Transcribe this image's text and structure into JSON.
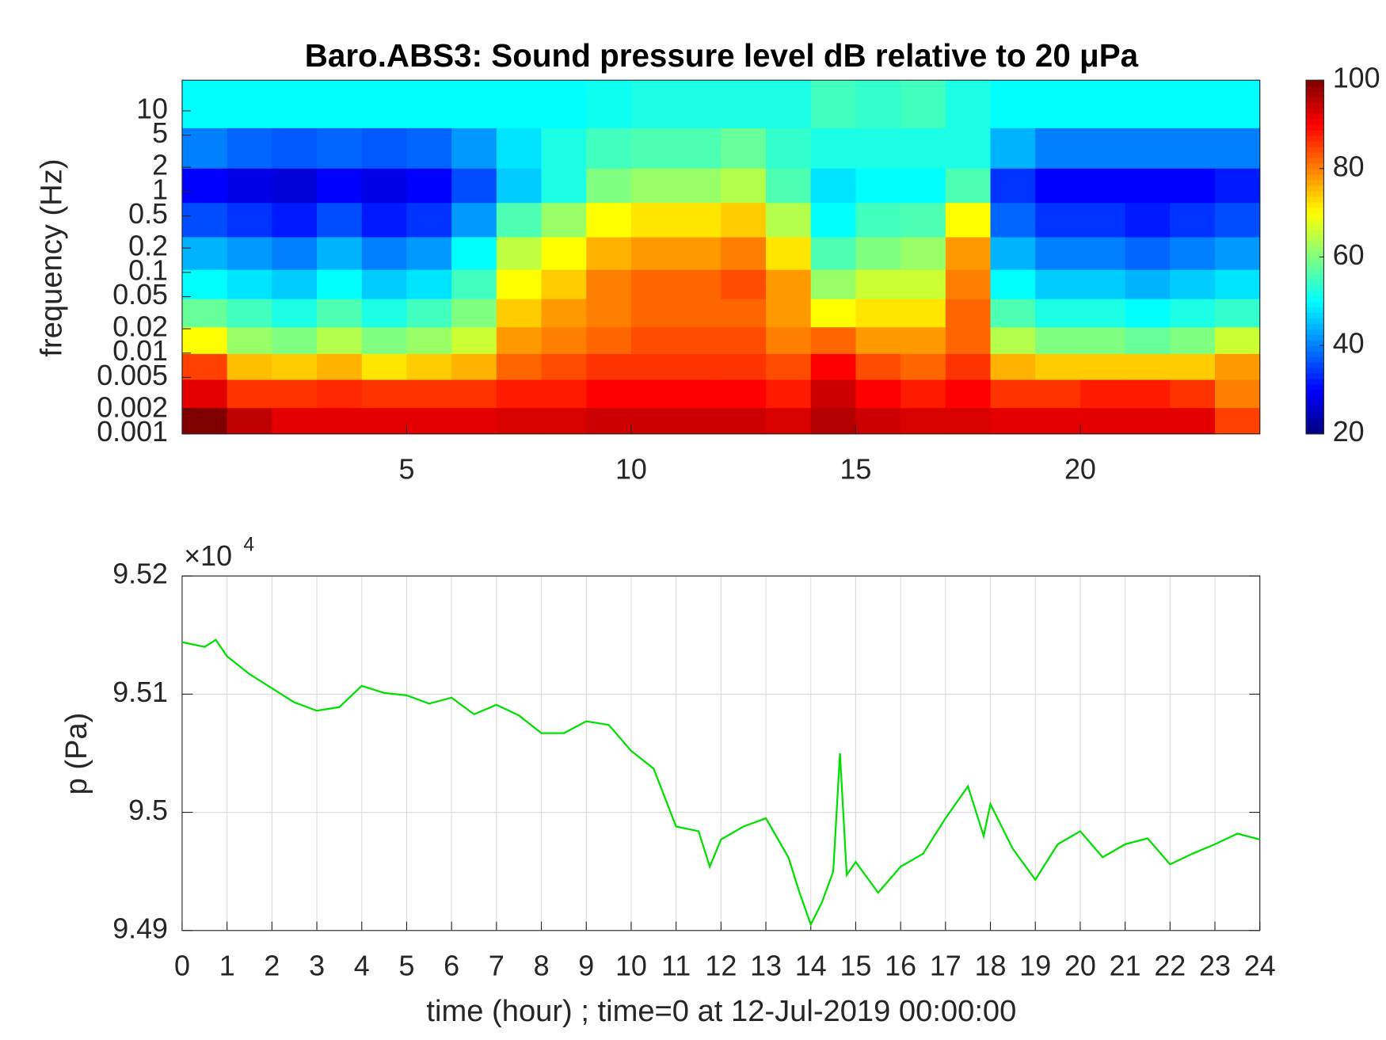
{
  "chart_data": [
    {
      "type": "heatmap",
      "title": "Baro.ABS3: Sound pressure level dB relative to 20 μPa",
      "ylabel": "frequency (Hz)",
      "x": [
        0.5,
        1.5,
        2.5,
        3.5,
        4.5,
        5.5,
        6.5,
        7.5,
        8.5,
        9.5,
        10.5,
        11.5,
        12.5,
        13.5,
        14.5,
        15.5,
        16.5,
        17.5,
        18.5,
        19.5,
        20.5,
        21.5,
        22.5,
        23.5
      ],
      "y": [
        0.0014,
        0.0032,
        0.007,
        0.014,
        0.032,
        0.07,
        0.17,
        0.45,
        1.2,
        3.2,
        12
      ],
      "z": [
        [
          100,
          95,
          92,
          92,
          92,
          92,
          92,
          93,
          93,
          94,
          94,
          94,
          94,
          93,
          96,
          94,
          93,
          93,
          92,
          92,
          92,
          92,
          92,
          85
        ],
        [
          92,
          86,
          86,
          87,
          86,
          86,
          86,
          88,
          88,
          90,
          90,
          90,
          90,
          88,
          94,
          90,
          88,
          90,
          86,
          86,
          88,
          88,
          86,
          80
        ],
        [
          85,
          75,
          74,
          76,
          72,
          74,
          76,
          82,
          84,
          86,
          86,
          86,
          86,
          84,
          90,
          84,
          82,
          86,
          76,
          74,
          74,
          74,
          74,
          78
        ],
        [
          70,
          62,
          60,
          64,
          60,
          62,
          66,
          78,
          80,
          82,
          84,
          84,
          84,
          80,
          82,
          78,
          78,
          82,
          64,
          60,
          60,
          58,
          60,
          66
        ],
        [
          58,
          55,
          52,
          56,
          52,
          55,
          60,
          74,
          78,
          80,
          82,
          82,
          82,
          78,
          70,
          72,
          72,
          82,
          56,
          52,
          52,
          50,
          52,
          54
        ],
        [
          50,
          48,
          46,
          50,
          46,
          48,
          55,
          70,
          74,
          80,
          82,
          82,
          84,
          78,
          62,
          66,
          66,
          80,
          50,
          46,
          46,
          44,
          46,
          48
        ],
        [
          44,
          42,
          40,
          44,
          40,
          42,
          50,
          65,
          70,
          76,
          78,
          78,
          80,
          72,
          56,
          60,
          62,
          78,
          44,
          40,
          40,
          38,
          40,
          42
        ],
        [
          36,
          34,
          32,
          36,
          32,
          34,
          42,
          56,
          62,
          70,
          72,
          72,
          74,
          64,
          50,
          55,
          56,
          70,
          38,
          34,
          34,
          32,
          34,
          36
        ],
        [
          30,
          28,
          27,
          30,
          28,
          30,
          36,
          46,
          52,
          60,
          62,
          62,
          64,
          56,
          48,
          50,
          50,
          56,
          34,
          30,
          30,
          30,
          30,
          32
        ],
        [
          40,
          38,
          37,
          38,
          37,
          38,
          42,
          48,
          52,
          55,
          56,
          56,
          58,
          54,
          52,
          52,
          52,
          52,
          44,
          40,
          40,
          40,
          40,
          40
        ],
        [
          50,
          50,
          50,
          50,
          50,
          50,
          50,
          50,
          50,
          51,
          52,
          52,
          52,
          52,
          55,
          54,
          55,
          52,
          50,
          50,
          50,
          50,
          50,
          50
        ]
      ],
      "xlim": [
        0,
        24
      ],
      "xticks": [
        5,
        10,
        15,
        20
      ],
      "ylim": [
        0.001,
        24
      ],
      "ylog": true,
      "yticks": [
        0.001,
        0.002,
        0.005,
        0.01,
        0.02,
        0.05,
        0.1,
        0.2,
        0.5,
        1,
        2,
        5,
        10
      ],
      "colormap": "jet",
      "clim": [
        20,
        100
      ],
      "cticks": [
        20,
        40,
        60,
        80,
        100
      ]
    },
    {
      "type": "line",
      "xlabel": "time (hour) ; time=0 at 12-Jul-2019 00:00:00",
      "ylabel": "p (Pa)",
      "y_multiplier": {
        "base": "×10",
        "exponent": "4"
      },
      "x": [
        0,
        0.5,
        0.75,
        1,
        1.5,
        2,
        2.5,
        3,
        3.5,
        4,
        4.5,
        5,
        5.5,
        6,
        6.5,
        7,
        7.5,
        8,
        8.5,
        9,
        9.5,
        10,
        10.5,
        11,
        11.5,
        11.75,
        12,
        12.5,
        13,
        13.5,
        13.75,
        14,
        14.25,
        14.5,
        14.65,
        14.8,
        15,
        15.5,
        16,
        16.5,
        17,
        17.5,
        17.85,
        18,
        18.5,
        19,
        19.5,
        20,
        20.5,
        21,
        21.5,
        22,
        22.5,
        23,
        23.5,
        24
      ],
      "series": [
        {
          "color": "#00e000",
          "values": [
            9.5144,
            9.514,
            9.5146,
            9.5132,
            9.5117,
            9.5105,
            9.5093,
            9.5086,
            9.5089,
            9.5107,
            9.5101,
            9.5099,
            9.5092,
            9.5097,
            9.5083,
            9.5091,
            9.5082,
            9.5067,
            9.5067,
            9.5077,
            9.5074,
            9.5052,
            9.5037,
            9.4988,
            9.4984,
            9.4954,
            9.4977,
            9.4988,
            9.4995,
            9.4962,
            9.4932,
            9.4905,
            9.4924,
            9.495,
            9.505,
            9.4947,
            9.4958,
            9.4932,
            9.4954,
            9.4965,
            9.4995,
            9.5022,
            9.498,
            9.5007,
            9.4969,
            9.4943,
            9.4973,
            9.4984,
            9.4962,
            9.4973,
            9.4978,
            9.4956,
            9.4965,
            9.4973,
            9.4982,
            9.4977
          ]
        }
      ],
      "xlim": [
        0,
        24
      ],
      "xticks": [
        0,
        1,
        2,
        3,
        4,
        5,
        6,
        7,
        8,
        9,
        10,
        11,
        12,
        13,
        14,
        15,
        16,
        17,
        18,
        19,
        20,
        21,
        22,
        23,
        24
      ],
      "ylim": [
        9.49,
        9.52
      ],
      "yticks": [
        9.49,
        9.5,
        9.51,
        9.52
      ],
      "grid": true
    }
  ]
}
